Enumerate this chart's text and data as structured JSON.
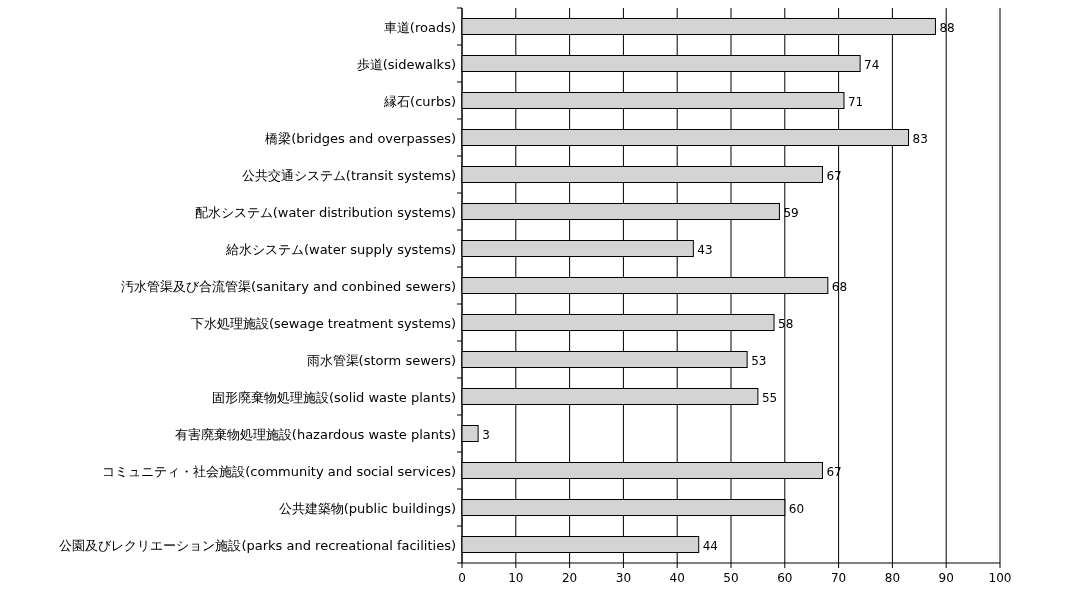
{
  "chart_data": {
    "type": "bar",
    "orientation": "horizontal",
    "categories": [
      "車道(roads)",
      "歩道(sidewalks)",
      "縁石(curbs)",
      "橋梁(bridges and overpasses)",
      "公共交通システム(transit systems)",
      "配水システム(water distribution systems)",
      "給水システム(water supply systems)",
      "汚水管渠及び合流管渠(sanitary and conbined sewers)",
      "下水処理施設(sewage treatment systems)",
      "雨水管渠(storm sewers)",
      "固形廃棄物処理施設(solid waste plants)",
      "有害廃棄物処理施設(hazardous waste plants)",
      "コミュニティ・社会施設(community and social services)",
      "公共建築物(public buildings)",
      "公園及びレクリエーション施設(parks and recreational facilities)"
    ],
    "values": [
      88,
      74,
      71,
      83,
      67,
      59,
      43,
      68,
      58,
      53,
      55,
      3,
      67,
      60,
      44
    ],
    "color": "#d4d4d4",
    "xlim": [
      0,
      100
    ],
    "xticks": [
      0,
      10,
      20,
      30,
      40,
      50,
      60,
      70,
      80,
      90,
      100
    ],
    "grid": "x",
    "data_labels": true
  }
}
